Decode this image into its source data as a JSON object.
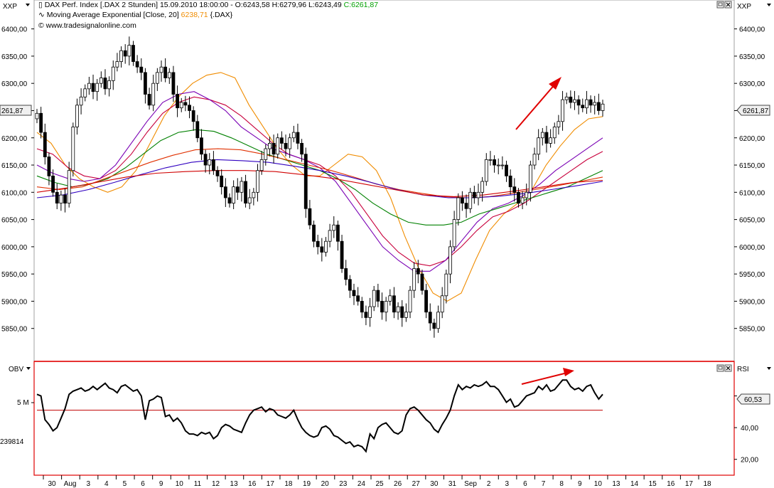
{
  "chart_data": [
    {
      "type": "candlestick",
      "title": "DAX Perf. Index [.DAX  2 Stunden]",
      "ohlc_text": "15.09.2010 18:00:00 - O:6243,58 H:6279,96 L:6243,49",
      "close_text": "C:6261,87",
      "indicator_text": "Moving Average Exponential [Close, 20]",
      "indicator_value": "6238,71",
      "indicator_suffix": "{.DAX}",
      "source": "© www.tradesignalonline.com",
      "left_axis_label": "XXP",
      "right_axis_label": "XXP",
      "last_value_label": "6261,87",
      "left_value_label": "261,87",
      "ylim": [
        5800,
        6440
      ],
      "y_ticks": [
        5850,
        5900,
        5950,
        6000,
        6050,
        6100,
        6150,
        6200,
        6250,
        6300,
        6350,
        6400
      ],
      "y_tick_labels": [
        "5850,00",
        "5900,00",
        "5950,00",
        "6000,00",
        "6050,00",
        "6100,00",
        "6150,00",
        "6200,00",
        "6250,00",
        "6300,00",
        "6350,00",
        "6400,00"
      ],
      "close_series": [
        6245,
        6210,
        6165,
        6130,
        6100,
        6080,
        6095,
        6080,
        6140,
        6220,
        6260,
        6275,
        6290,
        6300,
        6285,
        6300,
        6310,
        6290,
        6305,
        6330,
        6340,
        6360,
        6350,
        6370,
        6340,
        6330,
        6320,
        6280,
        6260,
        6300,
        6320,
        6330,
        6310,
        6320,
        6280,
        6255,
        6265,
        6260,
        6250,
        6230,
        6200,
        6170,
        6150,
        6160,
        6140,
        6130,
        6110,
        6090,
        6080,
        6110,
        6100,
        6120,
        6080,
        6090,
        6100,
        6140,
        6160,
        6180,
        6190,
        6170,
        6200,
        6190,
        6180,
        6200,
        6210,
        6190,
        6170,
        6070,
        6040,
        6010,
        6000,
        5990,
        6010,
        6030,
        6040,
        6010,
        5960,
        5940,
        5920,
        5910,
        5900,
        5880,
        5870,
        5890,
        5920,
        5900,
        5880,
        5900,
        5910,
        5880,
        5890,
        5870,
        5880,
        5920,
        5960,
        5950,
        5920,
        5880,
        5860,
        5850,
        5880,
        5910,
        5950,
        6000,
        6050,
        6090,
        6080,
        6070,
        6100,
        6090,
        6100,
        6120,
        6160,
        6160,
        6150,
        6150,
        6150,
        6130,
        6110,
        6100,
        6080,
        6090,
        6100,
        6150,
        6170,
        6200,
        6210,
        6190,
        6200,
        6220,
        6230,
        6270,
        6275,
        6265,
        6270,
        6260,
        6255,
        6270,
        6260,
        6265,
        6250,
        6262
      ],
      "ema_series": [
        {
          "name": "Moving Average Exponential [Close, 20]",
          "color": "#f08c00",
          "values": [
            6210,
            6190,
            6150,
            6125,
            6110,
            6100,
            6110,
            6140,
            6190,
            6240,
            6275,
            6300,
            6315,
            6320,
            6310,
            6260,
            6220,
            6180,
            6150,
            6130,
            6130,
            6150,
            6170,
            6165,
            6140,
            6090,
            6020,
            5960,
            5915,
            5900,
            5915,
            5975,
            6030,
            6060,
            6080,
            6105,
            6150,
            6185,
            6215,
            6235,
            6239
          ]
        },
        {
          "name": "",
          "color": "#c8003c",
          "values": [
            6180,
            6170,
            6145,
            6130,
            6125,
            6140,
            6170,
            6210,
            6245,
            6265,
            6275,
            6270,
            6260,
            6240,
            6215,
            6190,
            6170,
            6160,
            6150,
            6130,
            6100,
            6060,
            6020,
            5990,
            5970,
            5965,
            5975,
            6000,
            6030,
            6055,
            6065,
            6080,
            6100,
            6120,
            6140,
            6160,
            6175
          ]
        },
        {
          "name": "",
          "color": "#7a00b4",
          "values": [
            6150,
            6135,
            6125,
            6120,
            6125,
            6150,
            6190,
            6230,
            6265,
            6280,
            6285,
            6270,
            6250,
            6220,
            6200,
            6180,
            6170,
            6160,
            6145,
            6120,
            6080,
            6040,
            6000,
            5975,
            5955,
            5955,
            5975,
            6010,
            6045,
            6070,
            6080,
            6095,
            6115,
            6140,
            6160,
            6180,
            6200
          ]
        },
        {
          "name": "",
          "color": "#008000",
          "values": [
            6130,
            6118,
            6110,
            6115,
            6125,
            6145,
            6170,
            6195,
            6210,
            6215,
            6212,
            6200,
            6185,
            6170,
            6160,
            6150,
            6140,
            6125,
            6105,
            6080,
            6060,
            6045,
            6040,
            6040,
            6045,
            6060,
            6070,
            6080,
            6090,
            6100,
            6110,
            6125,
            6140
          ]
        },
        {
          "name": "",
          "color": "#e03000",
          "values": [
            6110,
            6105,
            6110,
            6125,
            6140,
            6155,
            6168,
            6178,
            6180,
            6178,
            6170,
            6160,
            6150,
            6140,
            6128,
            6115,
            6105,
            6098,
            6092,
            6090,
            6092,
            6098,
            6105,
            6112,
            6120,
            6128
          ]
        },
        {
          "name": "",
          "color": "#3000c0",
          "values": [
            6090,
            6095,
            6105,
            6118,
            6132,
            6145,
            6155,
            6160,
            6158,
            6155,
            6148,
            6140,
            6130,
            6118,
            6105,
            6095,
            6090,
            6090,
            6093,
            6098,
            6105,
            6112,
            6120
          ]
        },
        {
          "name": "",
          "color": "#d00000",
          "values": [
            6100,
            6108,
            6118,
            6128,
            6135,
            6138,
            6140,
            6140,
            6138,
            6132,
            6125,
            6115,
            6105,
            6095,
            6092,
            6095,
            6102,
            6110,
            6118,
            6122
          ]
        }
      ]
    },
    {
      "type": "line",
      "title": "",
      "left_label": "OBV",
      "right_label": "RSI",
      "left_ticks": [
        "5 M",
        "239814"
      ],
      "right_ticks": [
        60,
        40,
        20
      ],
      "right_tick_labels": [
        "60,00",
        "40,00",
        "20,00"
      ],
      "current_value_label": "60,53",
      "ylim": [
        10,
        80
      ],
      "reference_line": 51,
      "series": [
        {
          "name": "",
          "color": "#000000",
          "values": [
            61,
            60,
            45,
            42,
            38,
            40,
            46,
            52,
            61,
            63,
            64,
            65,
            63,
            64,
            66,
            64,
            66,
            68,
            65,
            64,
            62,
            66,
            67,
            65,
            63,
            64,
            60,
            45,
            57,
            58,
            60,
            59,
            47,
            48,
            44,
            46,
            43,
            38,
            36,
            36,
            35,
            37,
            36,
            37,
            33,
            35,
            40,
            42,
            41,
            39,
            38,
            37,
            43,
            48,
            51,
            52,
            53,
            50,
            52,
            51,
            48,
            47,
            46,
            48,
            51,
            45,
            40,
            37,
            35,
            34,
            35,
            40,
            41,
            39,
            35,
            34,
            32,
            30,
            31,
            28,
            29,
            28,
            25,
            36,
            33,
            40,
            42,
            43,
            40,
            37,
            36,
            38,
            48,
            52,
            53,
            51,
            48,
            45,
            43,
            39,
            37,
            42,
            46,
            51,
            60,
            67,
            64,
            66,
            65,
            67,
            66,
            67,
            69,
            66,
            66,
            64,
            60,
            56,
            58,
            53,
            54,
            57,
            60,
            61,
            62,
            66,
            64,
            67,
            63,
            64,
            67,
            70,
            70,
            66,
            64,
            65,
            63,
            66,
            67,
            62,
            58,
            61
          ]
        }
      ]
    }
  ],
  "x_axis": {
    "labels": [
      "30",
      "Aug",
      "3",
      "4",
      "5",
      "6",
      "9",
      "10",
      "11",
      "12",
      "13",
      "16",
      "17",
      "18",
      "19",
      "20",
      "23",
      "24",
      "25",
      "26",
      "27",
      "30",
      "31",
      "Sep",
      "2",
      "3",
      "6",
      "7",
      "8",
      "9",
      "10",
      "13",
      "14",
      "15",
      "16",
      "17",
      "18"
    ]
  },
  "annotations": {
    "arrow_color": "#e00000"
  },
  "window": {
    "minimize_icon": "minimize-icon",
    "close_icon": "close-icon",
    "scroll_icon": "chevron-down-icon"
  }
}
